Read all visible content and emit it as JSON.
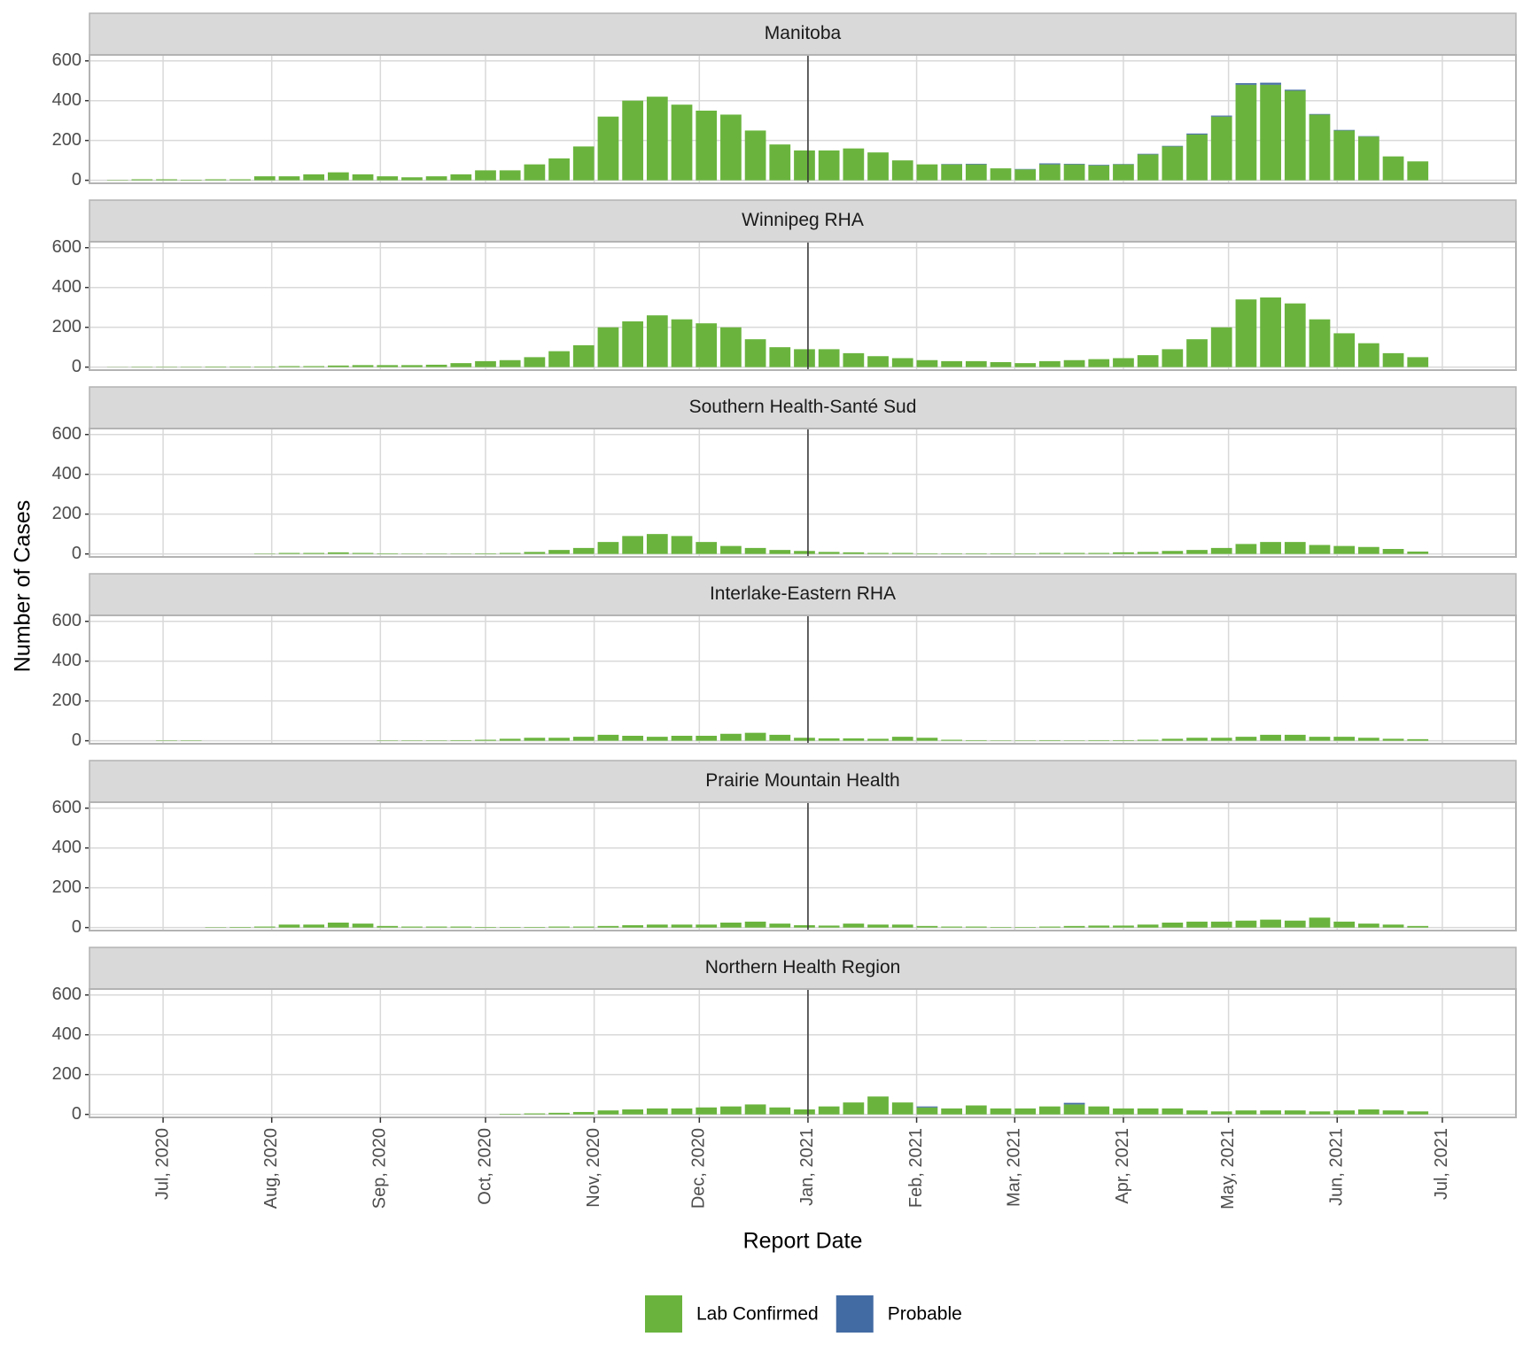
{
  "chart_data": {
    "type": "bar",
    "stacked": true,
    "x_label": "Report Date",
    "y_label": "Number of Cases",
    "x_start": "2020-06-15",
    "x_step_days": 7,
    "bar_days": 6,
    "xlim": [
      "2020-06-10",
      "2021-07-22"
    ],
    "xticks": [
      {
        "value": "2020-07-01",
        "label": "Jul, 2020"
      },
      {
        "value": "2020-08-01",
        "label": "Aug, 2020"
      },
      {
        "value": "2020-09-01",
        "label": "Sep, 2020"
      },
      {
        "value": "2020-10-01",
        "label": "Oct, 2020"
      },
      {
        "value": "2020-11-01",
        "label": "Nov, 2020"
      },
      {
        "value": "2020-12-01",
        "label": "Dec, 2020"
      },
      {
        "value": "2021-01-01",
        "label": "Jan, 2021"
      },
      {
        "value": "2021-02-01",
        "label": "Feb, 2021"
      },
      {
        "value": "2021-03-01",
        "label": "Mar, 2021"
      },
      {
        "value": "2021-04-01",
        "label": "Apr, 2021"
      },
      {
        "value": "2021-05-01",
        "label": "May, 2021"
      },
      {
        "value": "2021-06-01",
        "label": "Jun, 2021"
      },
      {
        "value": "2021-07-01",
        "label": "Jul, 2021"
      }
    ],
    "vline": "2021-01-01",
    "ylim": [
      -15,
      630
    ],
    "yticks": [
      0,
      200,
      400,
      600
    ],
    "grid": true,
    "legend": "bottom",
    "series_names": [
      "Lab Confirmed",
      "Probable"
    ],
    "colors": [
      "#6ab43e",
      "#436ba3"
    ],
    "facets": [
      {
        "title": "Manitoba",
        "series": [
          [
            2,
            5,
            5,
            3,
            5,
            5,
            20,
            20,
            30,
            40,
            30,
            20,
            15,
            20,
            30,
            50,
            50,
            80,
            110,
            170,
            320,
            400,
            420,
            380,
            350,
            330,
            250,
            180,
            150,
            150,
            160,
            140,
            100,
            80,
            80,
            80,
            60,
            55,
            80,
            80,
            75,
            80,
            130,
            170,
            230,
            320,
            480,
            480,
            450,
            330,
            250,
            220,
            120,
            95
          ],
          [
            0,
            0,
            0,
            0,
            0,
            0,
            0,
            0,
            0,
            0,
            0,
            0,
            0,
            0,
            0,
            0,
            0,
            0,
            0,
            0,
            0,
            0,
            0,
            0,
            0,
            0,
            0,
            0,
            0,
            0,
            0,
            0,
            0,
            0,
            2,
            3,
            0,
            2,
            5,
            3,
            3,
            2,
            3,
            3,
            5,
            5,
            8,
            10,
            5,
            3,
            3,
            2,
            0,
            0
          ]
        ]
      },
      {
        "title": "Winnipeg RHA",
        "series": [
          [
            1,
            2,
            2,
            2,
            3,
            3,
            3,
            5,
            5,
            8,
            10,
            10,
            10,
            12,
            20,
            30,
            35,
            50,
            80,
            110,
            200,
            230,
            260,
            240,
            220,
            200,
            140,
            100,
            90,
            90,
            70,
            55,
            45,
            35,
            30,
            30,
            25,
            20,
            30,
            35,
            40,
            45,
            60,
            90,
            140,
            200,
            340,
            350,
            320,
            240,
            170,
            120,
            70,
            50
          ],
          [
            0,
            0,
            0,
            0,
            0,
            0,
            0,
            0,
            0,
            0,
            0,
            0,
            0,
            0,
            0,
            0,
            0,
            0,
            0,
            0,
            0,
            0,
            0,
            0,
            0,
            0,
            0,
            0,
            0,
            0,
            0,
            0,
            0,
            0,
            0,
            0,
            0,
            0,
            0,
            0,
            0,
            0,
            0,
            0,
            0,
            0,
            0,
            0,
            0,
            0,
            0,
            0,
            0,
            0
          ]
        ]
      },
      {
        "title": "Southern Health-Santé Sud",
        "series": [
          [
            0,
            0,
            0,
            0,
            0,
            0,
            2,
            5,
            5,
            8,
            5,
            3,
            2,
            2,
            2,
            3,
            5,
            10,
            20,
            30,
            60,
            90,
            100,
            90,
            60,
            40,
            30,
            20,
            15,
            10,
            8,
            5,
            5,
            3,
            3,
            3,
            3,
            3,
            5,
            5,
            5,
            8,
            10,
            15,
            20,
            30,
            50,
            60,
            60,
            45,
            40,
            35,
            25,
            12
          ],
          [
            0,
            0,
            0,
            0,
            0,
            0,
            0,
            0,
            0,
            0,
            0,
            0,
            0,
            0,
            0,
            0,
            0,
            0,
            0,
            0,
            0,
            0,
            0,
            0,
            0,
            0,
            0,
            0,
            0,
            0,
            0,
            0,
            0,
            0,
            0,
            0,
            0,
            0,
            0,
            0,
            0,
            0,
            0,
            0,
            0,
            0,
            0,
            0,
            0,
            0,
            0,
            0,
            0,
            0
          ]
        ]
      },
      {
        "title": "Interlake-Eastern RHA",
        "series": [
          [
            0,
            0,
            2,
            2,
            0,
            0,
            0,
            0,
            0,
            0,
            0,
            2,
            2,
            2,
            3,
            5,
            10,
            15,
            15,
            20,
            30,
            25,
            20,
            25,
            25,
            35,
            40,
            30,
            15,
            12,
            12,
            10,
            20,
            15,
            5,
            3,
            2,
            2,
            3,
            2,
            3,
            3,
            5,
            10,
            15,
            15,
            20,
            30,
            30,
            20,
            20,
            15,
            10,
            8
          ],
          [
            0,
            0,
            0,
            0,
            0,
            0,
            0,
            0,
            0,
            0,
            0,
            0,
            0,
            0,
            0,
            0,
            0,
            0,
            0,
            0,
            0,
            0,
            0,
            0,
            0,
            0,
            0,
            0,
            0,
            0,
            0,
            0,
            0,
            0,
            0,
            0,
            0,
            0,
            0,
            0,
            0,
            0,
            0,
            0,
            0,
            0,
            0,
            0,
            0,
            0,
            0,
            0,
            0,
            0
          ]
        ]
      },
      {
        "title": "Prairie Mountain Health",
        "series": [
          [
            0,
            0,
            0,
            0,
            2,
            3,
            5,
            15,
            15,
            25,
            20,
            8,
            5,
            5,
            5,
            3,
            3,
            3,
            5,
            5,
            8,
            12,
            15,
            15,
            15,
            25,
            30,
            20,
            12,
            10,
            20,
            15,
            15,
            8,
            5,
            5,
            3,
            3,
            5,
            8,
            10,
            10,
            15,
            25,
            30,
            30,
            35,
            40,
            35,
            50,
            30,
            20,
            15,
            8
          ],
          [
            0,
            0,
            0,
            0,
            0,
            0,
            0,
            0,
            0,
            0,
            0,
            0,
            0,
            0,
            0,
            0,
            0,
            0,
            0,
            0,
            0,
            0,
            0,
            0,
            0,
            0,
            0,
            0,
            0,
            0,
            0,
            0,
            0,
            0,
            0,
            0,
            0,
            0,
            0,
            0,
            0,
            0,
            0,
            0,
            0,
            0,
            0,
            0,
            0,
            0,
            0,
            0,
            0,
            0
          ]
        ]
      },
      {
        "title": "Northern Health Region",
        "series": [
          [
            0,
            0,
            0,
            0,
            0,
            0,
            0,
            0,
            0,
            0,
            0,
            0,
            0,
            0,
            0,
            0,
            3,
            5,
            8,
            12,
            20,
            25,
            30,
            30,
            35,
            40,
            50,
            35,
            25,
            40,
            60,
            90,
            60,
            35,
            30,
            45,
            30,
            30,
            40,
            50,
            40,
            30,
            30,
            30,
            20,
            15,
            20,
            20,
            20,
            15,
            20,
            25,
            20,
            15
          ],
          [
            0,
            0,
            0,
            0,
            0,
            0,
            0,
            0,
            0,
            0,
            0,
            0,
            0,
            0,
            0,
            0,
            0,
            0,
            0,
            0,
            0,
            0,
            0,
            0,
            0,
            0,
            0,
            0,
            0,
            0,
            0,
            0,
            0,
            5,
            0,
            0,
            0,
            0,
            0,
            8,
            0,
            0,
            0,
            0,
            0,
            0,
            0,
            0,
            0,
            0,
            0,
            0,
            0,
            0
          ]
        ]
      }
    ]
  }
}
